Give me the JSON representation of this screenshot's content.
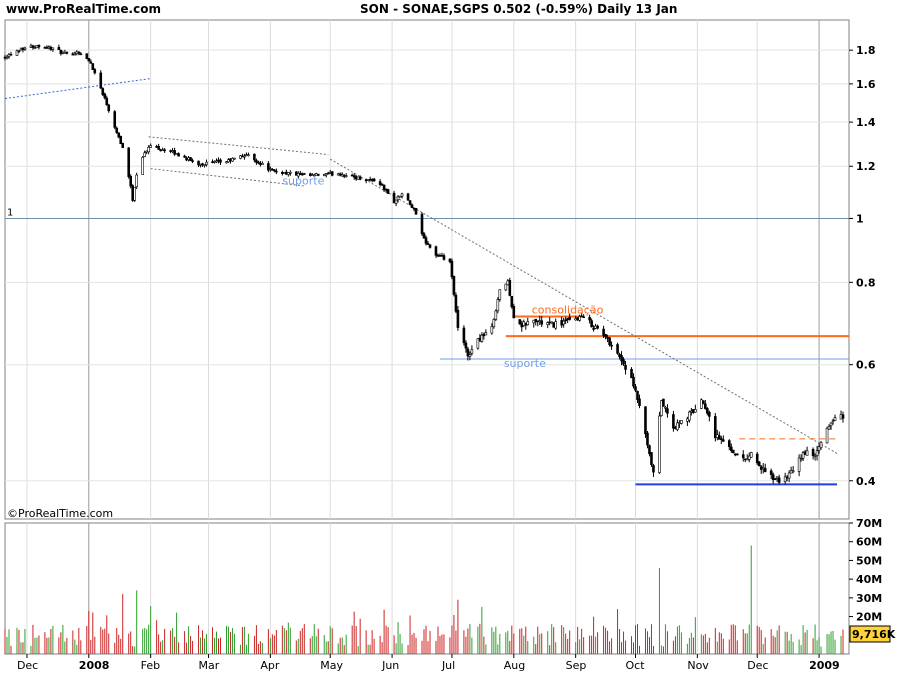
{
  "header": {
    "site": "www.ProRealTime.com",
    "title": "SON - SONAE,SGPS    0.502 (-0.59%)    Daily  13 Jan"
  },
  "watermark": "©ProRealTime.com",
  "colors": {
    "up": "#2e9e2e",
    "down": "#cc2222",
    "resistance": "#ff6a1a",
    "support": "#6f9fe6",
    "support_strong": "#1f3fe0",
    "trend": "#707070",
    "label_volume": "#ffd23a"
  },
  "chart_data": [
    {
      "type": "candlestick",
      "ylabel": "",
      "yscale": "log",
      "ylim": [
        0.35,
        2.0
      ],
      "yticks": [
        1.8,
        1.6,
        1.4,
        1.2,
        1,
        0.8,
        0.6,
        0.4
      ],
      "ytick_labels": [
        "1.8",
        "1.6",
        "1.4",
        "1.2",
        "1",
        "0.8",
        "0.6",
        "0.4"
      ],
      "xlim": [
        "2007-11-20",
        "2009-01-16"
      ],
      "x_ticks": [
        {
          "date": "2007-12-01",
          "label": "Dec"
        },
        {
          "date": "2008-01-01",
          "label": "2008"
        },
        {
          "date": "2008-02-01",
          "label": "Feb"
        },
        {
          "date": "2008-03-01",
          "label": "Mar"
        },
        {
          "date": "2008-04-01",
          "label": "Apr"
        },
        {
          "date": "2008-05-01",
          "label": "May"
        },
        {
          "date": "2008-06-01",
          "label": "Jun"
        },
        {
          "date": "2008-07-01",
          "label": "Jul"
        },
        {
          "date": "2008-08-01",
          "label": "Aug"
        },
        {
          "date": "2008-09-01",
          "label": "Sep"
        },
        {
          "date": "2008-10-01",
          "label": "Oct"
        },
        {
          "date": "2008-11-01",
          "label": "Nov"
        },
        {
          "date": "2008-12-01",
          "label": "Dec"
        },
        {
          "date": "2009-01-01",
          "label": "2009"
        }
      ],
      "close_path": [
        [
          "2007-11-20",
          1.76
        ],
        [
          "2007-11-28",
          1.81
        ],
        [
          "2007-12-07",
          1.83
        ],
        [
          "2007-12-14",
          1.81
        ],
        [
          "2007-12-21",
          1.77
        ],
        [
          "2007-12-27",
          1.79
        ],
        [
          "2008-01-02",
          1.72
        ],
        [
          "2008-01-08",
          1.55
        ],
        [
          "2008-01-14",
          1.38
        ],
        [
          "2008-01-18",
          1.28
        ],
        [
          "2008-01-21",
          1.16
        ],
        [
          "2008-01-23",
          1.07
        ],
        [
          "2008-01-26",
          1.22
        ],
        [
          "2008-02-01",
          1.29
        ],
        [
          "2008-02-12",
          1.26
        ],
        [
          "2008-02-25",
          1.21
        ],
        [
          "2008-03-10",
          1.22
        ],
        [
          "2008-03-20",
          1.25
        ],
        [
          "2008-04-02",
          1.18
        ],
        [
          "2008-04-20",
          1.16
        ],
        [
          "2008-05-05",
          1.17
        ],
        [
          "2008-05-16",
          1.15
        ],
        [
          "2008-05-25",
          1.14
        ],
        [
          "2008-06-02",
          1.06
        ],
        [
          "2008-06-06",
          1.09
        ],
        [
          "2008-06-12",
          1.03
        ],
        [
          "2008-06-17",
          0.93
        ],
        [
          "2008-06-23",
          0.88
        ],
        [
          "2008-06-30",
          0.86
        ],
        [
          "2008-07-04",
          0.68
        ],
        [
          "2008-07-09",
          0.62
        ],
        [
          "2008-07-15",
          0.66
        ],
        [
          "2008-07-21",
          0.68
        ],
        [
          "2008-07-25",
          0.78
        ],
        [
          "2008-07-29",
          0.8
        ],
        [
          "2008-08-02",
          0.68
        ],
        [
          "2008-08-10",
          0.7
        ],
        [
          "2008-08-20",
          0.69
        ],
        [
          "2008-08-30",
          0.7
        ],
        [
          "2008-09-04",
          0.71
        ],
        [
          "2008-09-12",
          0.68
        ],
        [
          "2008-09-20",
          0.64
        ],
        [
          "2008-09-28",
          0.58
        ],
        [
          "2008-10-03",
          0.52
        ],
        [
          "2008-10-07",
          0.45
        ],
        [
          "2008-10-10",
          0.41
        ],
        [
          "2008-10-14",
          0.53
        ],
        [
          "2008-10-20",
          0.48
        ],
        [
          "2008-10-27",
          0.5
        ],
        [
          "2008-11-04",
          0.53
        ],
        [
          "2008-11-10",
          0.47
        ],
        [
          "2008-11-17",
          0.45
        ],
        [
          "2008-11-24",
          0.43
        ],
        [
          "2008-11-28",
          0.44
        ],
        [
          "2008-12-05",
          0.41
        ],
        [
          "2008-12-12",
          0.4
        ],
        [
          "2008-12-18",
          0.41
        ],
        [
          "2008-12-24",
          0.44
        ],
        [
          "2008-12-31",
          0.44
        ],
        [
          "2009-01-05",
          0.48
        ],
        [
          "2009-01-09",
          0.5
        ],
        [
          "2009-01-13",
          0.502
        ]
      ],
      "annotations": {
        "horizontal": [
          {
            "price": 1.0,
            "label": "1",
            "color": "#6f8fa8",
            "from": "2007-11-20",
            "to": "2009-01-16",
            "width": 1
          },
          {
            "price": 0.663,
            "label": "",
            "color": "#ff6a1a",
            "from": "2008-07-28",
            "to": "2009-01-16",
            "width": 2
          },
          {
            "price": 0.71,
            "label": "",
            "color": "#ff6a1a",
            "from": "2008-08-01",
            "to": "2008-09-04",
            "width": 2
          },
          {
            "price": 0.612,
            "label": "",
            "color": "#6f9fe6",
            "from": "2008-06-25",
            "to": "2009-01-16",
            "width": 1
          },
          {
            "price": 0.395,
            "label": "",
            "color": "#1f3fe0",
            "from": "2008-10-01",
            "to": "2009-01-10",
            "width": 2
          },
          {
            "price": 0.463,
            "label": "",
            "color": "#ff6a1a",
            "from": "2008-11-22",
            "to": "2009-01-11",
            "width": 1,
            "dash": true
          }
        ],
        "trendlines": [
          {
            "from": [
              "2007-11-20",
              1.52
            ],
            "to": [
              "2008-02-01",
              1.63
            ],
            "color": "#3c66d8",
            "dash": true
          },
          {
            "from": [
              "2008-01-31",
              1.33
            ],
            "to": [
              "2008-04-30",
              1.25
            ],
            "color": "#707070",
            "dash": true
          },
          {
            "from": [
              "2008-02-01",
              1.19
            ],
            "to": [
              "2008-04-18",
              1.12
            ],
            "color": "#707070",
            "dash": true
          },
          {
            "from": [
              "2008-05-01",
              1.23
            ],
            "to": [
              "2009-01-10",
              0.44
            ],
            "color": "#707070",
            "dash": true
          }
        ],
        "labels": [
          {
            "text": "suporte",
            "date": "2008-04-07",
            "price": 1.125,
            "color": "#6f9fe6"
          },
          {
            "text": "consolidação",
            "date": "2008-08-10",
            "price": 0.718,
            "color": "#ff6a1a"
          },
          {
            "text": "suporte",
            "date": "2008-07-27",
            "price": 0.595,
            "color": "#6f9fe6"
          }
        ]
      }
    },
    {
      "type": "bar",
      "ylabel": "",
      "ylim": [
        0,
        70
      ],
      "unit": "M",
      "yticks": [
        70,
        60,
        50,
        40,
        30,
        20
      ],
      "ytick_labels": [
        "70M",
        "60M",
        "50M",
        "40M",
        "30M",
        "20M"
      ],
      "last_value_label": "9,716K",
      "last_value": 9.716,
      "notable_spikes": [
        {
          "date": "2008-01-18",
          "value": 32
        },
        {
          "date": "2008-01-25",
          "value": 34
        },
        {
          "date": "2008-07-04",
          "value": 29
        },
        {
          "date": "2008-10-13",
          "value": 46
        },
        {
          "date": "2008-11-28",
          "value": 58
        }
      ],
      "typical_range": [
        4,
        16
      ]
    }
  ]
}
